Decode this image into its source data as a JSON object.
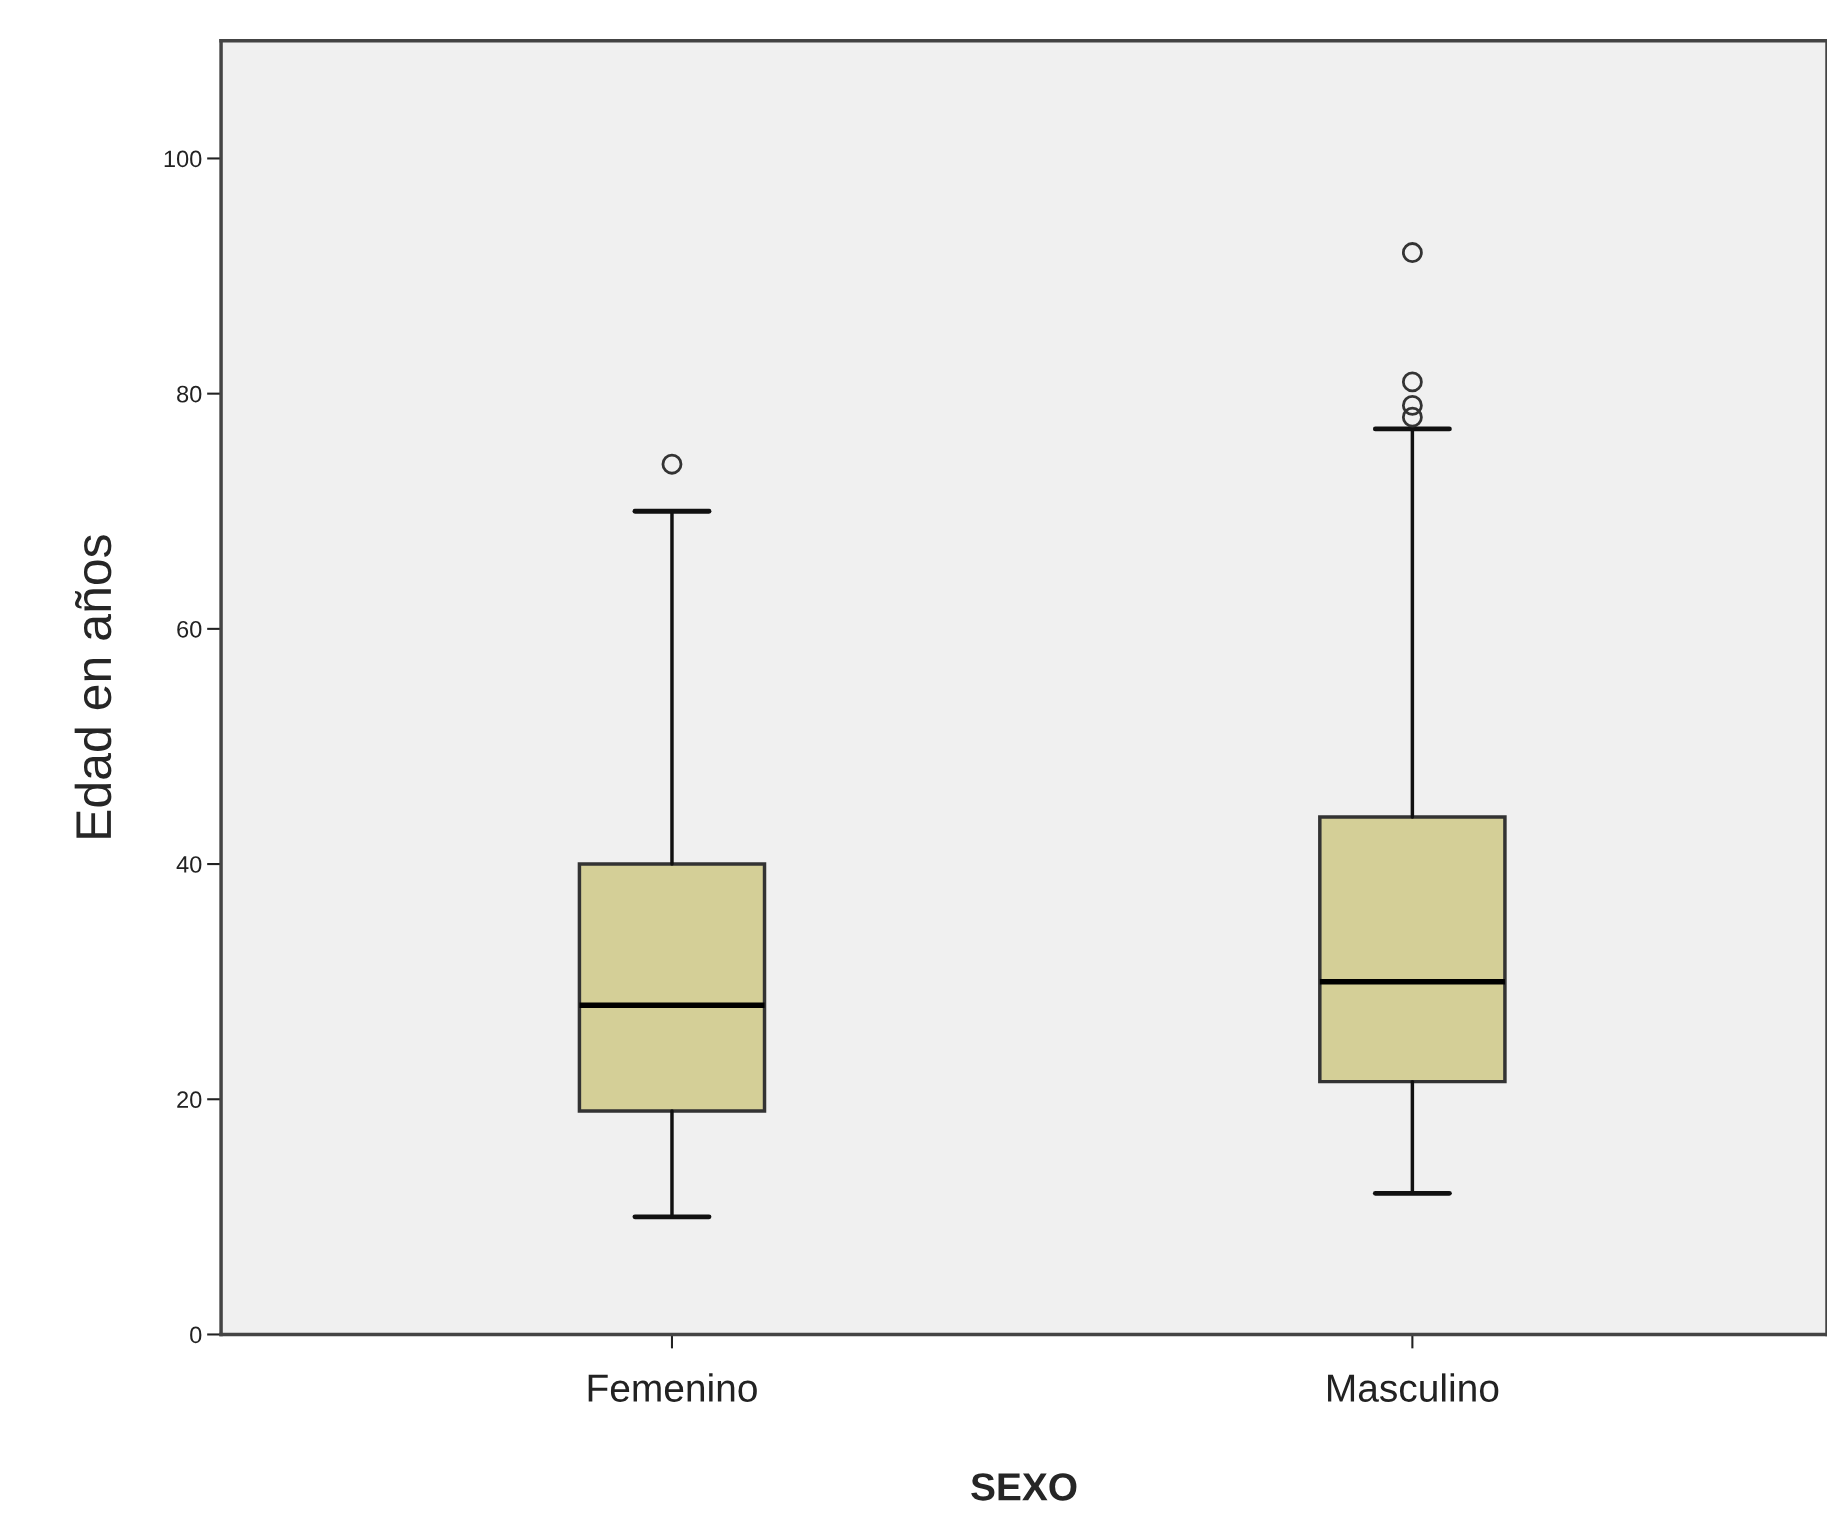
{
  "chart_data": {
    "type": "box",
    "xlabel": "SEXO",
    "ylabel": "Edad en años",
    "categories": [
      "Femenino",
      "Masculino"
    ],
    "series": [
      {
        "color": "#d4cf97",
        "boxes": [
          {
            "low": 10,
            "q1": 19,
            "median": 28,
            "q3": 40,
            "high": 70,
            "outliers": [
              74
            ]
          },
          {
            "low": 12,
            "q1": 21.5,
            "median": 30,
            "q3": 44,
            "high": 77,
            "outliers": [
              92,
              81,
              79,
              78
            ]
          }
        ]
      }
    ],
    "ylim": [
      0,
      110
    ],
    "yticks": [
      0,
      20,
      40,
      60,
      80,
      100
    ],
    "grid": false
  }
}
